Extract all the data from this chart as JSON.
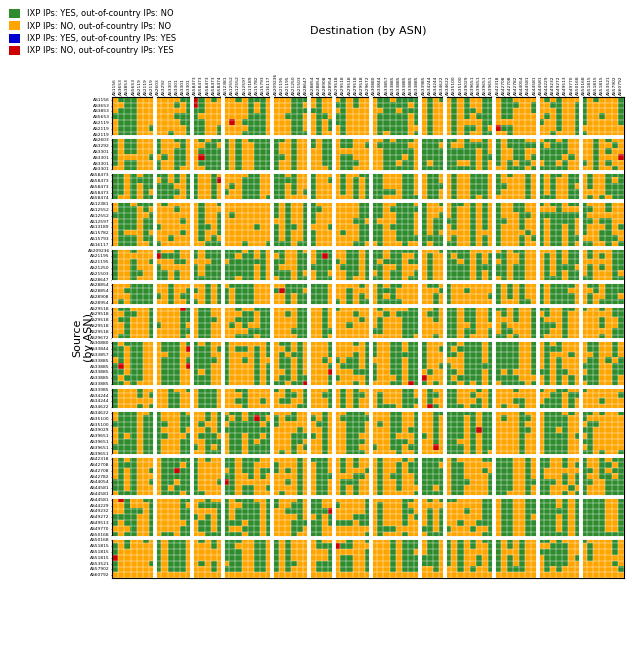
{
  "title_x": "Destination (by ASN)",
  "title_y": "Source\n(by ASN)",
  "colors": {
    "green": "#2E8B2E",
    "orange": "#FFA500",
    "blue": "#0000CC",
    "red": "#CC0000"
  },
  "legend_items": [
    {
      "color": "#2E8B2E",
      "label": "IXP IPs: YES, out-of-country IPs: NO"
    },
    {
      "color": "#FFA500",
      "label": "IXP IPs: NO, out-of-country IPs: NO"
    },
    {
      "color": "#0000CC",
      "label": "IXP IPs: YES, out-of-country IPs: YES"
    },
    {
      "color": "#CC0000",
      "label": "IXP IPs: NO, out-of-country IPs: YES"
    }
  ],
  "asn_labels": [
    "AS1156",
    "AS3653",
    "AS3853",
    "AS5653",
    "AS2119",
    "AS2119",
    "AS2119",
    "AS2603",
    "AS3292",
    "AS3301",
    "AS3301",
    "AS3301",
    "AS3301",
    "AS58473",
    "AS58473",
    "AS58473",
    "AS58473",
    "AS58474",
    "AS12381",
    "AS12552",
    "AS12552",
    "AS12597",
    "AS13189",
    "AS15782",
    "AS15793",
    "AS16117",
    "AS209236",
    "AS21195",
    "AS21195",
    "AS21250",
    "AS21503",
    "AS28647",
    "AS28854",
    "AS28854",
    "AS28908",
    "AS28954",
    "AS29518",
    "AS29518",
    "AS29518",
    "AS29518",
    "AS29518",
    "AS29672",
    "AS30880",
    "AS33844",
    "AS33857",
    "AS33885",
    "AS33885",
    "AS33885",
    "AS33885",
    "AS33885",
    "AS33985",
    "AS34244",
    "AS34244",
    "AS34622",
    "AS34622",
    "AS35100",
    "AS35100",
    "AS39029",
    "AS39651",
    "AS39651",
    "AS39651",
    "AS39651",
    "AS42318",
    "AS42708",
    "AS42708",
    "AS42782",
    "AS44054",
    "AS44581",
    "AS44581",
    "AS44581",
    "AS44229",
    "AS49232",
    "AS49272",
    "AS49513",
    "AS49770",
    "AS50168",
    "AS50168",
    "AS51815",
    "AS51815",
    "AS51815",
    "AS53521",
    "AS57902",
    "AS60792"
  ],
  "group_separators": [
    6.5,
    12.5,
    17.5,
    25.5,
    31.5,
    35.5,
    41.5,
    49.5,
    53.5,
    61.5,
    68.5,
    75.5
  ],
  "background_color": "#FFFFFF"
}
